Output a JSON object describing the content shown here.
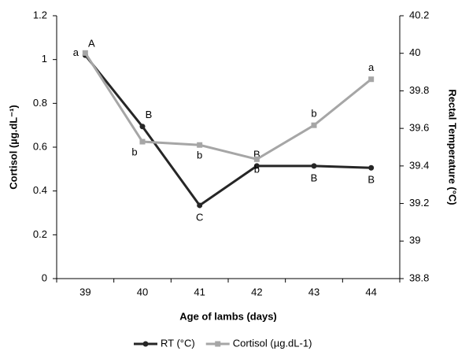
{
  "chart_data": {
    "type": "line",
    "x_label": "Age of lambs (days)",
    "y_label": "Cortisol (µg.dL⁻¹)",
    "y2_label": "Rectal Temperature (°C)",
    "categories": [
      "39",
      "40",
      "41",
      "42",
      "43",
      "44"
    ],
    "ylim": [
      0,
      1.2
    ],
    "yticks": [
      0,
      0.2,
      0.4,
      0.6,
      0.8,
      1,
      1.2
    ],
    "y2lim": [
      38.8,
      40.2
    ],
    "y2ticks": [
      38.8,
      39,
      39.2,
      39.4,
      39.6,
      39.8,
      40,
      40.2
    ],
    "series": [
      {
        "name": "RT (°C)",
        "color": "#262626",
        "marker": "circle",
        "axis": "y2",
        "values": [
          39.99,
          39.61,
          39.19,
          39.4,
          39.4,
          39.39
        ],
        "letters": [
          "A",
          "B",
          "C",
          "B",
          "B",
          "B"
        ]
      },
      {
        "name": "Cortisol (µg.dL-1)",
        "color": "#a6a6a6",
        "marker": "square",
        "values": [
          1.03,
          0.625,
          0.61,
          0.545,
          0.7,
          0.91
        ],
        "letters": [
          "a",
          "b",
          "b",
          "b",
          "b",
          "a"
        ]
      }
    ]
  }
}
